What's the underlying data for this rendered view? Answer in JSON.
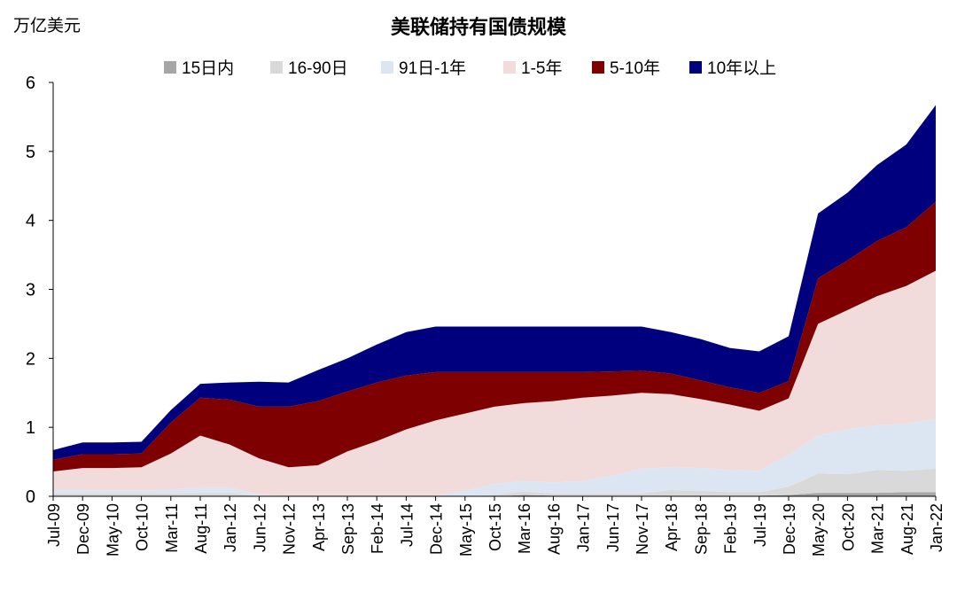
{
  "chart_data": {
    "type": "stacked_area",
    "title": "美联储持有国债规模",
    "y_unit": "万亿美元",
    "categories": [
      "Jul-09",
      "Dec-09",
      "May-10",
      "Oct-10",
      "Mar-11",
      "Aug-11",
      "Jan-12",
      "Jun-12",
      "Nov-12",
      "Apr-13",
      "Sep-13",
      "Feb-14",
      "Jul-14",
      "Dec-14",
      "May-15",
      "Oct-15",
      "Mar-16",
      "Aug-16",
      "Jan-17",
      "Jun-17",
      "Nov-17",
      "Apr-18",
      "Sep-18",
      "Feb-19",
      "Jul-19",
      "Dec-19",
      "May-20",
      "Oct-20",
      "Mar-21",
      "Aug-21",
      "Jan-22"
    ],
    "series": [
      {
        "name": "15日内",
        "color": "#a6a6a6",
        "values": [
          0.01,
          0.01,
          0.01,
          0.01,
          0.01,
          0.01,
          0.01,
          0,
          0,
          0,
          0,
          0,
          0,
          0,
          0,
          0,
          0.02,
          0.01,
          0.01,
          0.01,
          0.01,
          0.01,
          0.01,
          0.01,
          0.01,
          0.02,
          0.05,
          0.05,
          0.05,
          0.06,
          0.06
        ]
      },
      {
        "name": "16-90日",
        "color": "#d9d9d9",
        "values": [
          0.03,
          0.03,
          0.03,
          0.03,
          0.03,
          0.04,
          0.04,
          0,
          0,
          0,
          0,
          0,
          0,
          0,
          0,
          0.02,
          0.05,
          0.03,
          0.03,
          0.03,
          0.03,
          0.08,
          0.07,
          0.05,
          0.05,
          0.12,
          0.28,
          0.27,
          0.33,
          0.31,
          0.34
        ]
      },
      {
        "name": "91日-1年",
        "color": "#dce6f2",
        "values": [
          0.05,
          0.05,
          0.04,
          0.04,
          0.06,
          0.08,
          0.08,
          0.02,
          0,
          0,
          0,
          0,
          0,
          0,
          0.08,
          0.16,
          0.15,
          0.16,
          0.18,
          0.26,
          0.36,
          0.33,
          0.33,
          0.32,
          0.31,
          0.46,
          0.55,
          0.65,
          0.65,
          0.68,
          0.72
        ]
      },
      {
        "name": "1-5年",
        "color": "#f2dcdb",
        "values": [
          0.27,
          0.32,
          0.33,
          0.34,
          0.52,
          0.75,
          0.62,
          0.53,
          0.42,
          0.45,
          0.65,
          0.8,
          0.97,
          1.1,
          1.12,
          1.12,
          1.13,
          1.18,
          1.21,
          1.16,
          1.1,
          1.06,
          1.0,
          0.95,
          0.87,
          0.82,
          1.62,
          1.73,
          1.87,
          2.0,
          2.15
        ]
      },
      {
        "name": "5-10年",
        "color": "#7f0000",
        "values": [
          0.17,
          0.2,
          0.2,
          0.2,
          0.45,
          0.55,
          0.65,
          0.75,
          0.88,
          0.93,
          0.87,
          0.85,
          0.78,
          0.7,
          0.6,
          0.5,
          0.45,
          0.42,
          0.37,
          0.35,
          0.32,
          0.3,
          0.27,
          0.25,
          0.26,
          0.25,
          0.66,
          0.72,
          0.8,
          0.85,
          1.0
        ]
      },
      {
        "name": "10年以上",
        "color": "#00007f",
        "values": [
          0.14,
          0.17,
          0.17,
          0.17,
          0.18,
          0.2,
          0.25,
          0.36,
          0.35,
          0.45,
          0.48,
          0.55,
          0.63,
          0.66,
          0.66,
          0.66,
          0.66,
          0.66,
          0.66,
          0.65,
          0.64,
          0.6,
          0.6,
          0.57,
          0.6,
          0.65,
          0.94,
          0.98,
          1.1,
          1.2,
          1.4
        ]
      }
    ],
    "ylim": [
      0,
      6
    ],
    "yticks": [
      0,
      1,
      2,
      3,
      4,
      5,
      6
    ],
    "grid": false,
    "legend": "top"
  }
}
